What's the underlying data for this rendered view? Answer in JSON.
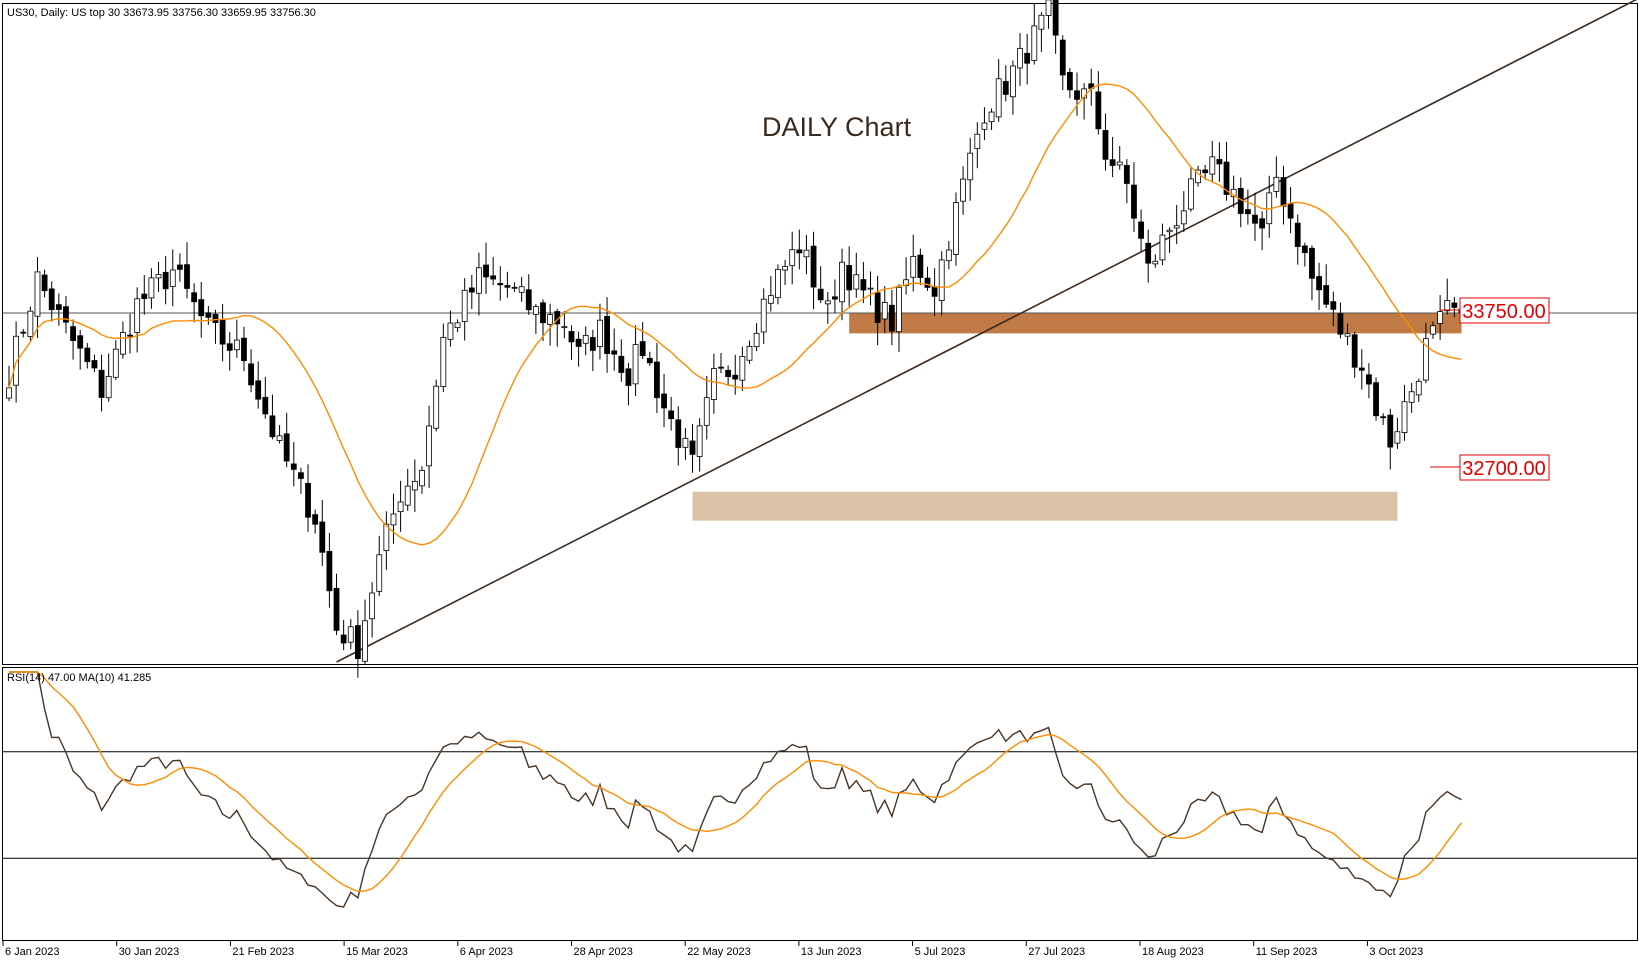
{
  "header": {
    "symbol_info": "US30, Daily:  US top 30  33673.95 33756.30 33659.95 33756.30"
  },
  "annotation": {
    "title": "DAILY Chart"
  },
  "price_labels": {
    "resistance": "33750.00",
    "support": "32700.00"
  },
  "rsi_header": "RSI(14) 47.00 MA(10) 41.285",
  "colors": {
    "candle_up_fill": "#ffffff",
    "candle_down_fill": "#000000",
    "candle_outline": "#000000",
    "ma_line": "#ff8c00",
    "trendline": "#3d2a1e",
    "resistance_zone": "#c07a45",
    "support_zone": "#d9c2a6",
    "rsi_line": "#4a3525",
    "rsi_ma": "#ff8c00",
    "label_red": "#e00000"
  },
  "chart_data": [
    {
      "type": "candlestick",
      "xlabels": [
        "6 Jan 2023",
        "30 Jan 2023",
        "21 Feb 2023",
        "15 Mar 2023",
        "6 Apr 2023",
        "28 Apr 2023",
        "22 May 2023",
        "13 Jun 2023",
        "5 Jul 2023",
        "27 Jul 2023",
        "18 Aug 2023",
        "11 Sep 2023",
        "3 Oct 2023"
      ],
      "close_anchors": [
        [
          0,
          33400
        ],
        [
          4,
          33950
        ],
        [
          8,
          33650
        ],
        [
          13,
          33300
        ],
        [
          18,
          33800
        ],
        [
          23,
          34000
        ],
        [
          28,
          33650
        ],
        [
          33,
          33500
        ],
        [
          38,
          32950
        ],
        [
          43,
          32550
        ],
        [
          46,
          31900
        ],
        [
          49,
          31800
        ],
        [
          52,
          32300
        ],
        [
          55,
          32700
        ],
        [
          58,
          32850
        ],
        [
          61,
          33600
        ],
        [
          66,
          33950
        ],
        [
          70,
          33900
        ],
        [
          74,
          33750
        ],
        [
          78,
          33700
        ],
        [
          80,
          33500
        ],
        [
          83,
          33650
        ],
        [
          87,
          33400
        ],
        [
          89,
          33550
        ],
        [
          92,
          33200
        ],
        [
          96,
          32850
        ],
        [
          99,
          33350
        ],
        [
          102,
          33450
        ],
        [
          107,
          33900
        ],
        [
          111,
          34150
        ],
        [
          115,
          33750
        ],
        [
          117,
          34050
        ],
        [
          119,
          33900
        ],
        [
          124,
          33700
        ],
        [
          127,
          34050
        ],
        [
          130,
          33900
        ],
        [
          135,
          34650
        ],
        [
          137,
          34950
        ],
        [
          140,
          35100
        ],
        [
          143,
          35300
        ],
        [
          146,
          35500
        ],
        [
          148,
          35100
        ],
        [
          152,
          35000
        ],
        [
          154,
          34700
        ],
        [
          157,
          34500
        ],
        [
          160,
          34000
        ],
        [
          163,
          34250
        ],
        [
          166,
          34450
        ],
        [
          169,
          34600
        ],
        [
          173,
          34400
        ],
        [
          176,
          34200
        ],
        [
          178,
          34550
        ],
        [
          181,
          34200
        ],
        [
          183,
          33950
        ],
        [
          187,
          33650
        ],
        [
          190,
          33450
        ],
        [
          192,
          33200
        ],
        [
          194,
          33000
        ],
        [
          197,
          33300
        ],
        [
          199,
          33550
        ],
        [
          202,
          33750
        ],
        [
          204,
          33750
        ]
      ],
      "ma_line": {
        "name": "",
        "period": 20
      },
      "horizontal_lines": [
        33750
      ],
      "trendline": {
        "from": {
          "x": 46,
          "y": 31700
        },
        "to": {
          "x": 229,
          "y": 35600
        }
      },
      "zones": [
        {
          "name": "resistance",
          "from_x": 118,
          "to_x": 204,
          "y_low": 33630,
          "y_high": 33750
        },
        {
          "name": "support",
          "from_x": 96,
          "to_x": 195,
          "y_low": 32530,
          "y_high": 32700
        }
      ],
      "ylim": [
        31700,
        35500
      ]
    },
    {
      "type": "line",
      "xlabels": [
        "6 Jan 2023",
        "30 Jan 2023",
        "21 Feb 2023",
        "15 Mar 2023",
        "6 Apr 2023",
        "28 Apr 2023",
        "22 May 2023",
        "13 Jun 2023",
        "5 Jul 2023",
        "27 Jul 2023",
        "18 Aug 2023",
        "11 Sep 2023",
        "3 Oct 2023"
      ],
      "series": [
        {
          "name": "",
          "period": 14,
          "source": "computed from candles"
        },
        {
          "name": "",
          "period": 10,
          "source": "moving average of RSI"
        }
      ],
      "levels": [
        70,
        30
      ],
      "ylim": [
        0,
        100
      ]
    }
  ]
}
